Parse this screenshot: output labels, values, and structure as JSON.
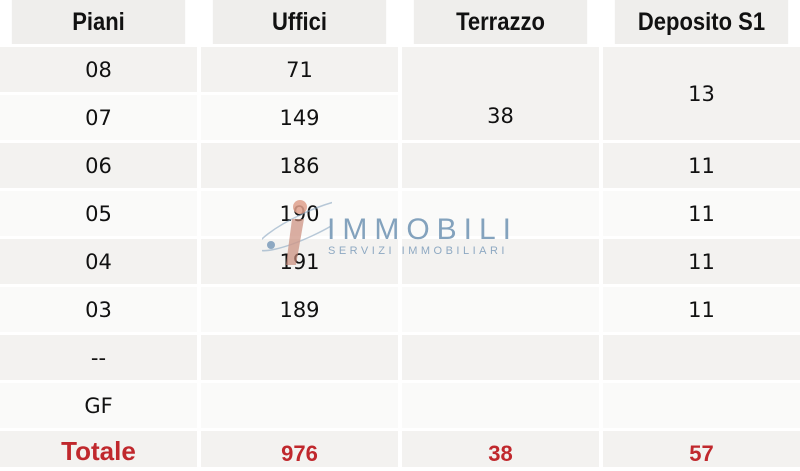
{
  "headers": [
    "Piani",
    "Uffici",
    "Terrazzo",
    "Deposito S1"
  ],
  "rows": [
    {
      "piano": "08",
      "uffici": "71"
    },
    {
      "piano": "07",
      "uffici": "149"
    },
    {
      "piano": "06",
      "uffici": "186",
      "deposito": "11"
    },
    {
      "piano": "05",
      "uffici": "190",
      "deposito": "11"
    },
    {
      "piano": "04",
      "uffici": "191",
      "deposito": "11"
    },
    {
      "piano": "03",
      "uffici": "189",
      "deposito": "11"
    },
    {
      "piano": "--"
    },
    {
      "piano": "GF"
    }
  ],
  "merged": {
    "terrazzo_08_07": "38",
    "deposito_08_07": "13"
  },
  "totals": {
    "label": "Totale",
    "uffici": "976",
    "terrazzo": "38",
    "deposito": "57"
  },
  "watermark": {
    "title": "IMMOBILI",
    "subtitle": "SERVIZI IMMOBILIARI"
  },
  "colors": {
    "total_text": "#c0282d",
    "logo_blue": "#6f93b3"
  }
}
